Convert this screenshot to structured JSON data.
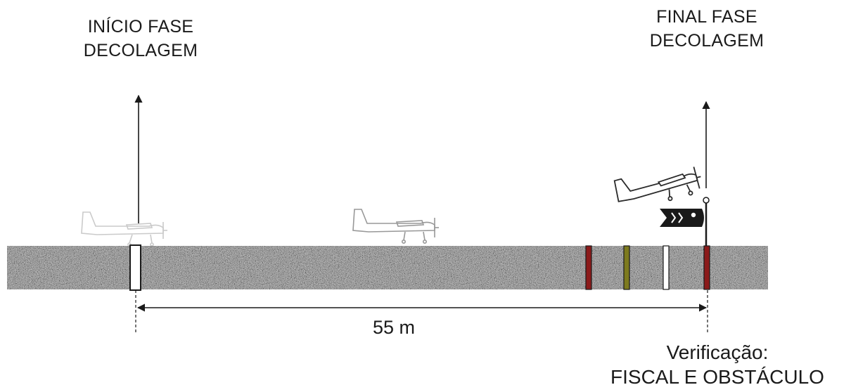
{
  "labels": {
    "start_line1": "INÍCIO FASE",
    "start_line2": "DECOLAGEM",
    "end_line1": "FINAL FASE",
    "end_line2": "DECOLAGEM",
    "distance": "55 m",
    "verify_line1": "Verificação:",
    "verify_line2": "FISCAL E OBSTÁCULO"
  },
  "colors": {
    "runway_base": "#8a8a8a",
    "marker_red": "#8b1a1a",
    "marker_olive": "#7d7a1e",
    "marker_white": "#ffffff",
    "windsock": "#1a1a1a",
    "line": "#1a1a1a"
  }
}
